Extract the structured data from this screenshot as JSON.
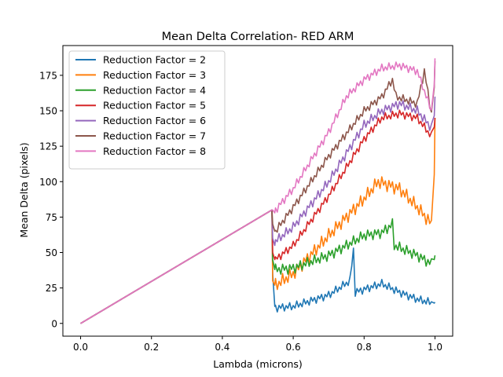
{
  "chart_data": {
    "type": "line",
    "title": "Mean Delta Correlation- RED ARM",
    "xlabel": "Lambda (microns)",
    "ylabel": "Mean Delta (pixels)",
    "xlim": [
      -0.05,
      1.05
    ],
    "ylim": [
      -9,
      196
    ],
    "xticks": [
      0.0,
      0.2,
      0.4,
      0.6,
      0.8,
      1.0
    ],
    "xtick_labels": [
      "0.0",
      "0.2",
      "0.4",
      "0.6",
      "0.8",
      "1.0"
    ],
    "yticks": [
      0,
      25,
      50,
      75,
      100,
      125,
      150,
      175
    ],
    "ytick_labels": [
      "0",
      "25",
      "50",
      "75",
      "100",
      "125",
      "150",
      "175"
    ],
    "grid": false,
    "legend_position": "top-left",
    "shared_segment": {
      "x": [
        0.0,
        0.54
      ],
      "y": [
        0,
        80
      ]
    },
    "series": [
      {
        "name": "Reduction Factor = 2",
        "color": "#1f77b4",
        "start": [
          0.54,
          80
        ],
        "drop": 35,
        "drop2": 12,
        "ctrl": [
          [
            0.55,
            11
          ],
          [
            0.6,
            12
          ],
          [
            0.7,
            20
          ],
          [
            0.76,
            30
          ],
          [
            0.77,
            52
          ],
          [
            0.775,
            22
          ],
          [
            0.85,
            28
          ],
          [
            0.9,
            22
          ],
          [
            0.95,
            17
          ],
          [
            1.0,
            14
          ]
        ],
        "amp": 3.0,
        "end": [
          1.0,
          15
        ]
      },
      {
        "name": "Reduction Factor = 3",
        "color": "#ff7f0e",
        "start": [
          0.54,
          80
        ],
        "drop": 30,
        "drop2": 27,
        "ctrl": [
          [
            0.55,
            27
          ],
          [
            0.6,
            35
          ],
          [
            0.7,
            62
          ],
          [
            0.8,
            88
          ],
          [
            0.84,
            100
          ],
          [
            0.9,
            95
          ],
          [
            0.95,
            82
          ],
          [
            0.99,
            70
          ],
          [
            1.0,
            140
          ]
        ],
        "amp": 5.0,
        "end": [
          1.0,
          145
        ]
      },
      {
        "name": "Reduction Factor = 4",
        "color": "#2ca02c",
        "start": [
          0.54,
          80
        ],
        "drop": 45,
        "drop2": 38,
        "ctrl": [
          [
            0.55,
            38
          ],
          [
            0.6,
            39
          ],
          [
            0.7,
            48
          ],
          [
            0.8,
            62
          ],
          [
            0.85,
            64
          ],
          [
            0.88,
            70
          ],
          [
            0.885,
            55
          ],
          [
            0.95,
            48
          ],
          [
            0.99,
            42
          ],
          [
            1.0,
            48
          ]
        ],
        "amp": 4.0,
        "end": [
          1.0,
          48
        ]
      },
      {
        "name": "Reduction Factor = 5",
        "color": "#d62728",
        "start": [
          0.54,
          80
        ],
        "drop": 50,
        "drop2": 45,
        "ctrl": [
          [
            0.55,
            45
          ],
          [
            0.6,
            55
          ],
          [
            0.7,
            90
          ],
          [
            0.8,
            130
          ],
          [
            0.85,
            145
          ],
          [
            0.9,
            148
          ],
          [
            0.95,
            145
          ],
          [
            0.99,
            132
          ],
          [
            1.0,
            145
          ]
        ],
        "amp": 3.0,
        "end": [
          1.0,
          145
        ]
      },
      {
        "name": "Reduction Factor = 6",
        "color": "#9467bd",
        "start": [
          0.54,
          80
        ],
        "drop": 60,
        "drop2": 55,
        "ctrl": [
          [
            0.55,
            58
          ],
          [
            0.6,
            68
          ],
          [
            0.7,
            100
          ],
          [
            0.8,
            140
          ],
          [
            0.85,
            150
          ],
          [
            0.9,
            155
          ],
          [
            0.95,
            150
          ],
          [
            0.99,
            138
          ],
          [
            1.0,
            155
          ]
        ],
        "amp": 3.5,
        "end": [
          1.0,
          160
        ]
      },
      {
        "name": "Reduction Factor = 7",
        "color": "#8c564b",
        "start": [
          0.54,
          80
        ],
        "drop": 70,
        "drop2": 65,
        "ctrl": [
          [
            0.55,
            65
          ],
          [
            0.6,
            82
          ],
          [
            0.7,
            118
          ],
          [
            0.8,
            150
          ],
          [
            0.85,
            160
          ],
          [
            0.88,
            172
          ],
          [
            0.89,
            160
          ],
          [
            0.95,
            155
          ],
          [
            0.97,
            178
          ],
          [
            0.99,
            148
          ],
          [
            1.0,
            185
          ]
        ],
        "amp": 3.0,
        "end": [
          1.0,
          185
        ]
      },
      {
        "name": "Reduction Factor = 8",
        "color": "#e377c2",
        "start": [
          0.54,
          80
        ],
        "drop": 80,
        "drop2": 78,
        "ctrl": [
          [
            0.55,
            80
          ],
          [
            0.6,
            95
          ],
          [
            0.7,
            135
          ],
          [
            0.75,
            160
          ],
          [
            0.8,
            172
          ],
          [
            0.85,
            180
          ],
          [
            0.9,
            182
          ],
          [
            0.95,
            178
          ],
          [
            0.99,
            150
          ],
          [
            1.0,
            187
          ]
        ],
        "amp": 3.0,
        "end": [
          1.0,
          187
        ]
      }
    ]
  }
}
